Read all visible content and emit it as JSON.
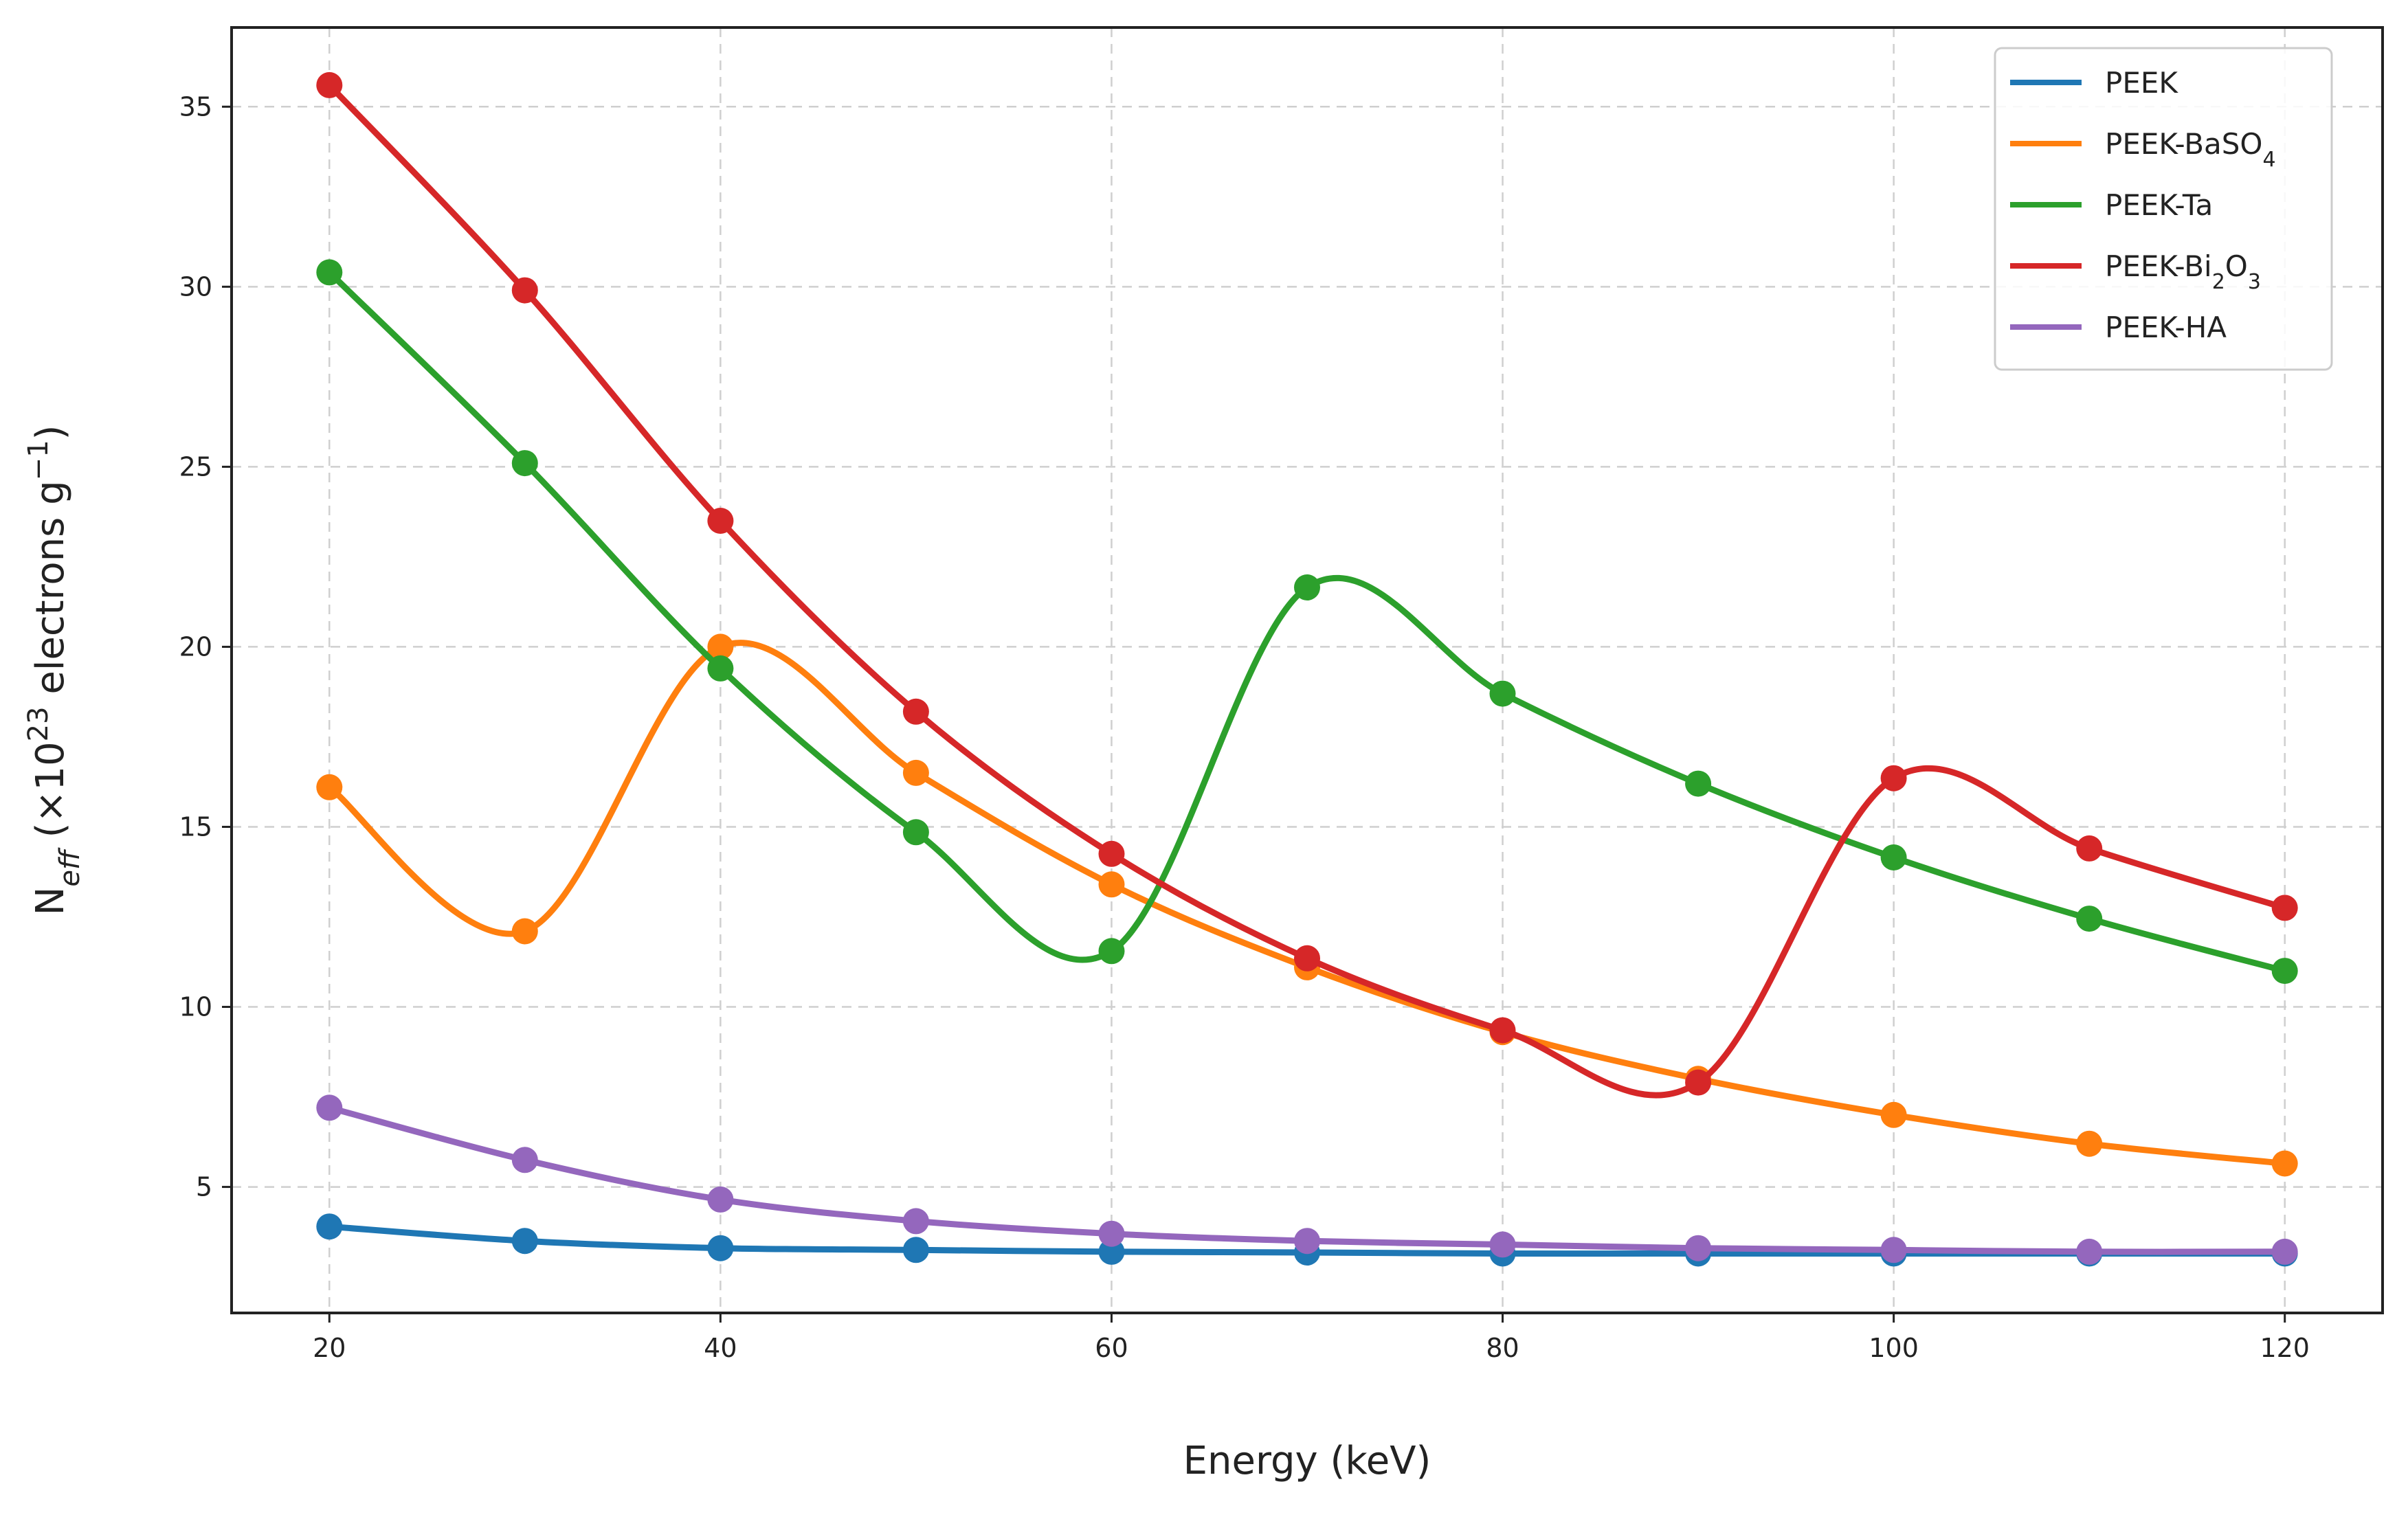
{
  "chart_data": {
    "type": "line",
    "title": "",
    "xlabel": "Energy (keV)",
    "ylabel": {
      "base": "N",
      "base_sub": "eff",
      "rest_before_sup": " (×10",
      "sup1": "23",
      "rest_mid": " electrons g",
      "sup2": "−1",
      "rest_end": ")"
    },
    "xlim": [
      15,
      125
    ],
    "ylim": [
      1.5,
      37.2
    ],
    "xticks": [
      20,
      40,
      60,
      80,
      100,
      120
    ],
    "yticks": [
      5,
      10,
      15,
      20,
      25,
      30,
      35
    ],
    "grid": true,
    "legend_position": "top-right",
    "x": [
      20,
      30,
      40,
      50,
      60,
      70,
      80,
      90,
      100,
      110,
      120
    ],
    "series": [
      {
        "name": "PEEK",
        "label_parts": [
          {
            "t": "PEEK"
          }
        ],
        "color": "#1f77b4",
        "values": [
          3.9,
          3.5,
          3.3,
          3.25,
          3.2,
          3.18,
          3.15,
          3.15,
          3.15,
          3.15,
          3.15
        ]
      },
      {
        "name": "PEEK-BaSO4",
        "label_parts": [
          {
            "t": "PEEK-BaSO"
          },
          {
            "t": "4",
            "sub": true
          }
        ],
        "color": "#ff7f0e",
        "values": [
          16.1,
          12.1,
          20.0,
          16.5,
          13.4,
          11.1,
          9.3,
          8.0,
          7.0,
          6.2,
          5.65
        ]
      },
      {
        "name": "PEEK-Ta",
        "label_parts": [
          {
            "t": "PEEK-Ta"
          }
        ],
        "color": "#2ca02c",
        "values": [
          30.4,
          25.1,
          19.4,
          14.85,
          11.55,
          21.65,
          18.7,
          16.2,
          14.15,
          12.45,
          11.0
        ]
      },
      {
        "name": "PEEK-Bi2O3",
        "label_parts": [
          {
            "t": "PEEK-Bi"
          },
          {
            "t": "2",
            "sub": true
          },
          {
            "t": "O"
          },
          {
            "t": "3",
            "sub": true
          }
        ],
        "color": "#d62728",
        "values": [
          35.6,
          29.9,
          23.5,
          18.2,
          14.25,
          11.35,
          9.35,
          7.9,
          16.35,
          14.4,
          12.75
        ]
      },
      {
        "name": "PEEK-HA",
        "label_parts": [
          {
            "t": "PEEK-HA"
          }
        ],
        "color": "#9467bd",
        "values": [
          7.2,
          5.75,
          4.65,
          4.05,
          3.7,
          3.5,
          3.4,
          3.3,
          3.25,
          3.2,
          3.2
        ]
      }
    ]
  }
}
